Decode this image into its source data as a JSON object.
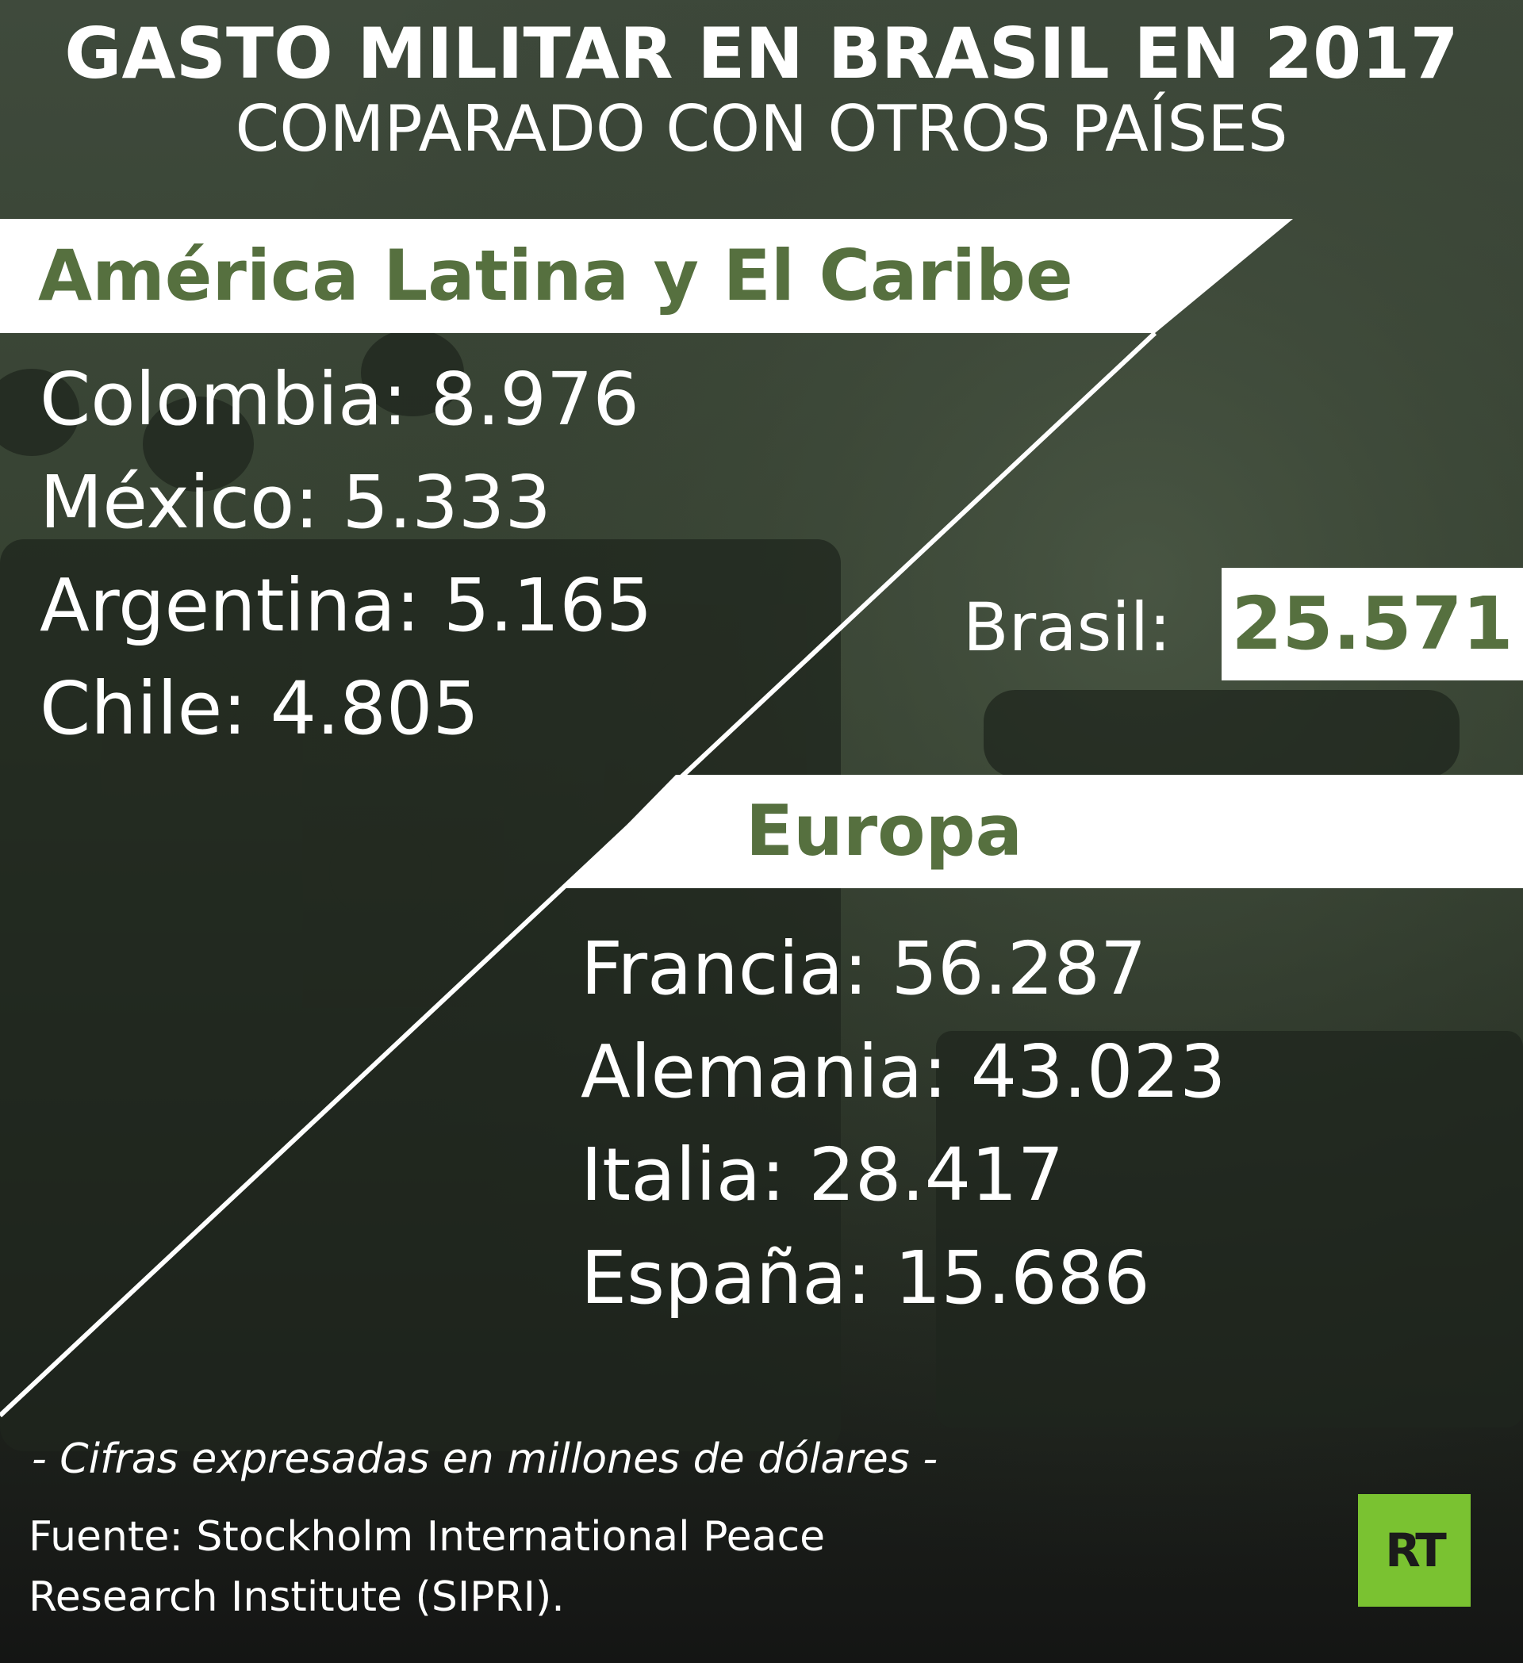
{
  "title_line1": "GASTO MILITAR EN BRASIL EN 2017",
  "title_line2": "COMPARADO CON OTROS PAÍSES",
  "latam": {
    "header": "América Latina y El Caribe",
    "rows": [
      {
        "label": "Colombia:",
        "value": "8.976"
      },
      {
        "label": "México:",
        "value": "5.333"
      },
      {
        "label": "Argentina:",
        "value": "5.165"
      },
      {
        "label": "Chile:",
        "value": "4.805"
      }
    ]
  },
  "brasil": {
    "label": "Brasil:",
    "value": "25.571"
  },
  "europa": {
    "header": "Europa",
    "rows": [
      {
        "label": "Francia:",
        "value": "56.287"
      },
      {
        "label": "Alemania:",
        "value": "43.023"
      },
      {
        "label": "Italia:",
        "value": "28.417"
      },
      {
        "label": "España:",
        "value": "15.686"
      }
    ]
  },
  "note": "- Cifras expresadas en millones de dólares -",
  "source_line1": "Fuente: Stockholm International Peace",
  "source_line2": "Research Institute (SIPRI).",
  "logo_text": "RT",
  "colors": {
    "accent_green": "#56703f",
    "logo_green": "#7ac231"
  }
}
